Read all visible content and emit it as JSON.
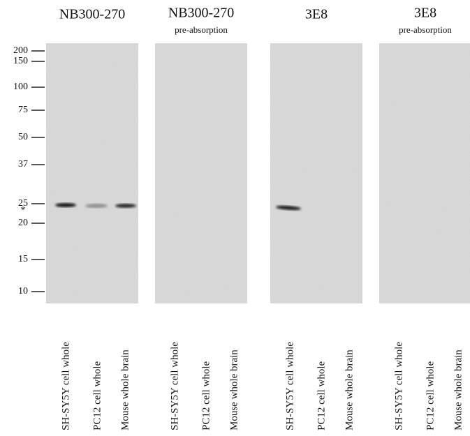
{
  "markers": [
    200,
    150,
    100,
    75,
    50,
    37,
    25,
    20,
    15,
    10
  ],
  "asterisk": "*",
  "panels": [
    {
      "title": "NB300-270",
      "lanes": [
        "SH-SY5Y cell whole",
        "PC12 cell whole",
        "Mouse whole brain"
      ]
    },
    {
      "title": "NB300-270",
      "subtitle": "pre-absorption",
      "lanes": [
        "SH-SY5Y cell whole",
        "PC12 cell whole",
        "Mouse whole brain"
      ]
    },
    {
      "title": "3E8",
      "lanes": [
        "SH-SY5Y cell whole",
        "PC12 cell whole",
        "Mouse whole brain"
      ]
    },
    {
      "title": "3E8",
      "subtitle": "pre-absorption",
      "lanes": [
        "SH-SY5Y cell whole",
        "PC12 cell whole",
        "Mouse whole brain"
      ]
    }
  ]
}
